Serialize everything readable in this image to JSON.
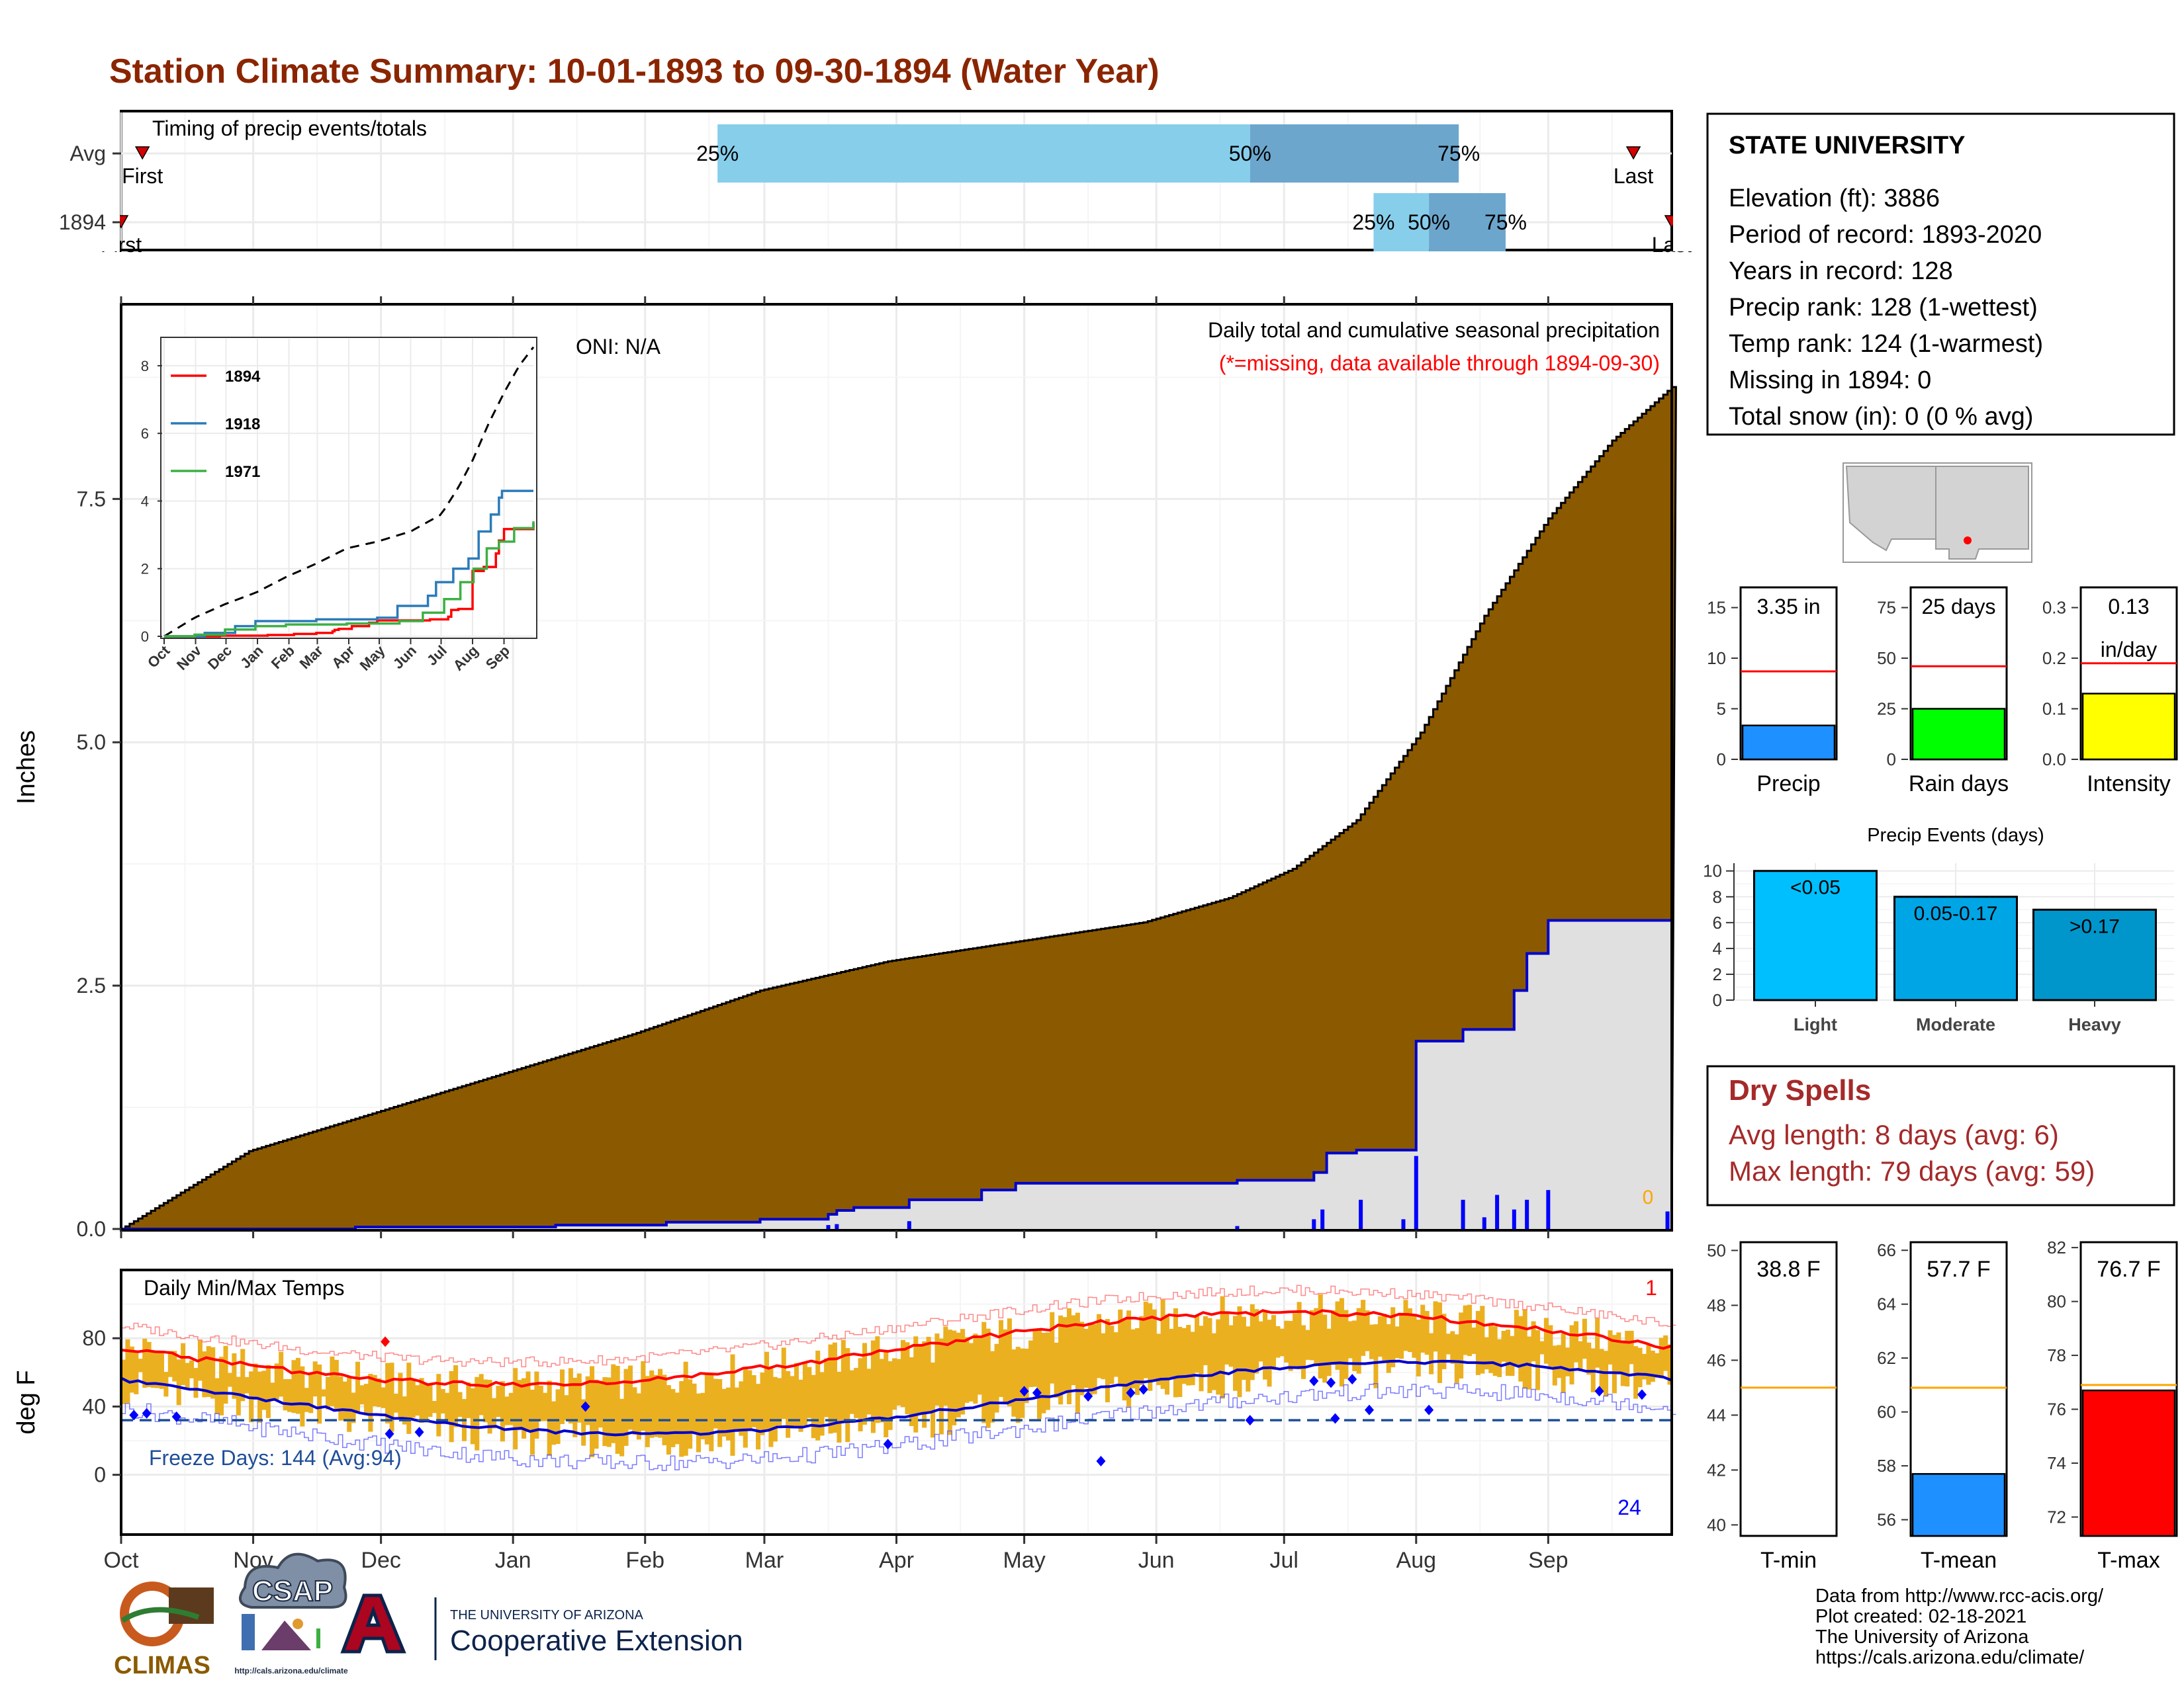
{
  "title": "Station Climate Summary: 10-01-1893 to 09-30-1894 (Water Year)",
  "colors": {
    "title": "#8B2500",
    "precip_fill": "#8B5A00",
    "temp_bar": "#EBB020",
    "normal_line": "#0000CC",
    "spell_text": "#A52A2A"
  },
  "timing_panel": {
    "label": "Timing of precip events/totals",
    "rows": [
      {
        "name": "Avg",
        "first_label": "First",
        "last_label": "Last",
        "first_day": 5,
        "last_day": 355,
        "p25": 140,
        "p50": 265,
        "p75": 314,
        "p25_label": "25%",
        "p50_label": "50%",
        "p75_label": "75%"
      },
      {
        "name": "1894",
        "first_label": "First",
        "last_label": "Last",
        "first_day": 0,
        "last_day": 364,
        "p25": 294,
        "p50": 307,
        "p75": 325,
        "p25_label": "25%",
        "p50_label": "50%",
        "p75_label": "75%"
      }
    ]
  },
  "main_precip": {
    "ylabel": "Inches",
    "y_ticks": [
      "0.0",
      "2.5",
      "5.0",
      "7.5"
    ],
    "ylim": [
      0,
      9.5
    ],
    "annotation_title": "Daily total and cumulative seasonal precipitation",
    "annotation_missing": "(*=missing, data available through 1894-09-30)",
    "oni": "ONI: N/A",
    "missing_count": "0",
    "normal_cumulative_knots": [
      [
        0,
        0
      ],
      [
        30,
        0.8
      ],
      [
        60,
        1.2
      ],
      [
        90,
        1.6
      ],
      [
        120,
        2.0
      ],
      [
        150,
        2.45
      ],
      [
        180,
        2.75
      ],
      [
        210,
        2.95
      ],
      [
        240,
        3.15
      ],
      [
        260,
        3.4
      ],
      [
        275,
        3.7
      ],
      [
        290,
        4.2
      ],
      [
        305,
        5.1
      ],
      [
        320,
        6.3
      ],
      [
        335,
        7.3
      ],
      [
        350,
        8.1
      ],
      [
        364,
        8.65
      ]
    ],
    "season_cumulative_steps": [
      [
        0,
        0
      ],
      [
        55,
        0.02
      ],
      [
        102,
        0.04
      ],
      [
        128,
        0.07
      ],
      [
        150,
        0.1
      ],
      [
        166,
        0.15
      ],
      [
        168,
        0.19
      ],
      [
        172,
        0.22
      ],
      [
        185,
        0.3
      ],
      [
        202,
        0.4
      ],
      [
        210,
        0.47
      ],
      [
        262,
        0.5
      ],
      [
        280,
        0.58
      ],
      [
        283,
        0.78
      ],
      [
        290,
        0.81
      ],
      [
        304,
        1.93
      ],
      [
        315,
        2.05
      ],
      [
        327,
        2.45
      ],
      [
        330,
        2.83
      ],
      [
        335,
        3.17
      ],
      [
        364,
        3.35
      ]
    ],
    "daily_events": [
      [
        166,
        0.04
      ],
      [
        168,
        0.05
      ],
      [
        185,
        0.08
      ],
      [
        262,
        0.03
      ],
      [
        280,
        0.1
      ],
      [
        282,
        0.2
      ],
      [
        291,
        0.3
      ],
      [
        301,
        0.1
      ],
      [
        304,
        0.75
      ],
      [
        315,
        0.3
      ],
      [
        320,
        0.12
      ],
      [
        323,
        0.35
      ],
      [
        327,
        0.2
      ],
      [
        330,
        0.3
      ],
      [
        335,
        0.4
      ],
      [
        363,
        0.18
      ]
    ]
  },
  "inset": {
    "y_ticks": [
      "0",
      "2",
      "4",
      "6",
      "8"
    ],
    "x_ticks": [
      "Oct",
      "Nov",
      "Dec",
      "Jan",
      "Feb",
      "Mar",
      "Apr",
      "May",
      "Jun",
      "Jul",
      "Aug",
      "Sep"
    ],
    "series": [
      {
        "name": "1894",
        "color": "#FF0000"
      },
      {
        "name": "1918",
        "color": "#2B7BB9"
      },
      {
        "name": "1971",
        "color": "#3CB043"
      }
    ]
  },
  "station": {
    "name": "STATE UNIVERSITY",
    "lines": [
      "Elevation (ft): 3886",
      "Period of record: 1893-2020",
      "Years in record: 128",
      "Precip rank: 128 (1-wettest)",
      "Temp rank: 124 (1-warmest)",
      "Missing in 1894: 0",
      "Total snow (in): 0 (0 % avg)"
    ]
  },
  "small_bars": [
    {
      "label": "Precip",
      "value_label": "3.35 in",
      "value": 3.35,
      "avg": 8.7,
      "ymax": 17,
      "ticks": [
        "0",
        "5",
        "10",
        "15"
      ],
      "color": "#1E90FF"
    },
    {
      "label": "Rain days",
      "value_label": "25 days",
      "value": 25,
      "avg": 46,
      "ymax": 85,
      "ticks": [
        "0",
        "25",
        "50",
        "75"
      ],
      "color": "#00FF00"
    },
    {
      "label": "Intensity",
      "value_label": "0.13",
      "value_label2": "in/day",
      "value": 0.13,
      "avg": 0.19,
      "ymax": 0.34,
      "ticks": [
        "0.0",
        "0.1",
        "0.2",
        "0.3"
      ],
      "color": "#FFFF00"
    }
  ],
  "precip_events": {
    "title": "Precip Events (days)",
    "ticks": [
      "0",
      "2",
      "4",
      "6",
      "8",
      "10"
    ],
    "categories": [
      "Light",
      "Moderate",
      "Heavy"
    ],
    "bar_labels": [
      "<0.05",
      "0.05-0.17",
      ">0.17"
    ],
    "values": [
      10,
      8,
      7
    ],
    "colors": [
      "#00BFFF",
      "#00A5E6",
      "#0096CC"
    ]
  },
  "dry_spells": {
    "title": "Dry Spells",
    "avg": "Avg length: 8 days (avg: 6)",
    "max": "Max length: 79 days (avg: 59)"
  },
  "temps": {
    "ylabel": "deg F",
    "title": "Daily Min/Max Temps",
    "y_ticks": [
      "0",
      "40",
      "80"
    ],
    "freeze": "Freeze Days: 144 (Avg:94)",
    "count_top": "1",
    "count_bottom": "24",
    "x_ticks": [
      "Oct",
      "Nov",
      "Dec",
      "Jan",
      "Feb",
      "Mar",
      "Apr",
      "May",
      "Jun",
      "Jul",
      "Aug",
      "Sep"
    ]
  },
  "temp_bars": [
    {
      "label": "T-min",
      "value_label": "38.8 F",
      "value": 38.8,
      "avg": 45,
      "ymin": 39.6,
      "ymax": 50.3,
      "ticks": [
        "40",
        "42",
        "44",
        "46",
        "48",
        "50"
      ],
      "color": "#1E90FF"
    },
    {
      "label": "T-mean",
      "value_label": "57.7 F",
      "value": 57.7,
      "avg": 60.9,
      "ymin": 55.4,
      "ymax": 66.3,
      "ticks": [
        "56",
        "58",
        "60",
        "62",
        "64",
        "66"
      ],
      "color": "#1E90FF"
    },
    {
      "label": "T-max",
      "value_label": "76.7 F",
      "value": 76.7,
      "avg": 76.9,
      "ymin": 71.3,
      "ymax": 82.2,
      "ticks": [
        "72",
        "74",
        "76",
        "78",
        "80",
        "82"
      ],
      "color": "#FF0000"
    }
  ],
  "logos": {
    "climas": "CLIMAS",
    "csap": "CSAP",
    "ua_small": "THE UNIVERSITY OF ARIZONA",
    "ua_big": "Cooperative Extension",
    "csap_url": "http://cals.arizona.edu/climate"
  },
  "footer": [
    "Data from http://www.rcc-acis.org/",
    "Plot created: 02-18-2021",
    "The University of Arizona",
    "https://cals.arizona.edu/climate/"
  ]
}
